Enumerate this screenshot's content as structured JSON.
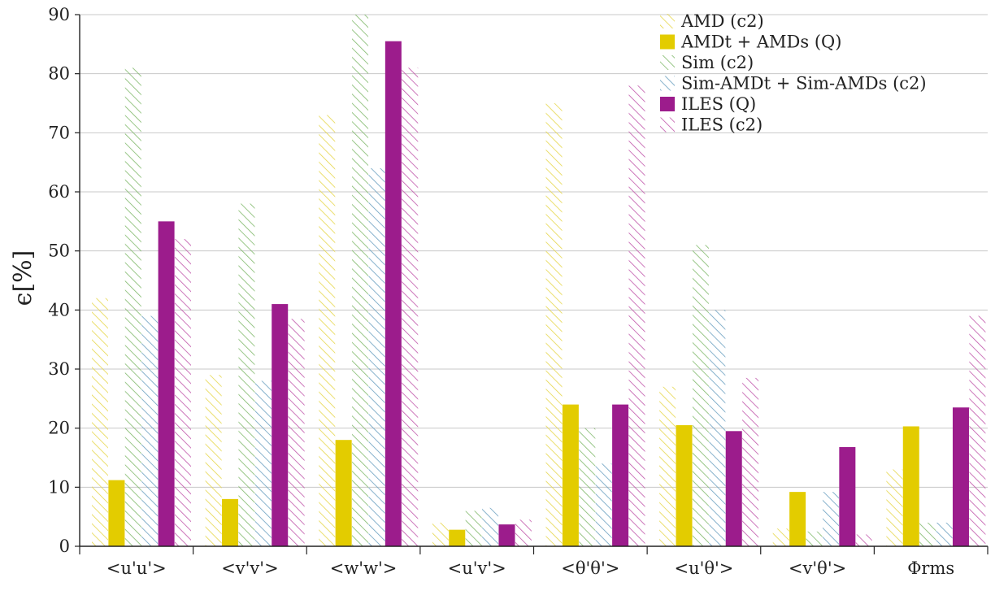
{
  "chart_data": {
    "type": "bar",
    "ylabel": "ϵ[%]",
    "ylim": [
      0,
      90
    ],
    "yticks": [
      0,
      10,
      20,
      30,
      40,
      50,
      60,
      70,
      80,
      90
    ],
    "grid": true,
    "legend_position": "top-right",
    "categories": [
      "<u'u'>",
      "<v'v'>",
      "<w'w'>",
      "<u'v'>",
      "<θ'θ'>",
      "<u'θ'>",
      "<v'θ'>",
      "Φrms"
    ],
    "series": [
      {
        "name": "AMD (c2)",
        "style": "hatched",
        "color": "#e6d64a",
        "values": [
          42,
          29,
          73,
          4,
          75,
          27,
          3,
          13
        ]
      },
      {
        "name": "AMDt + AMDs (Q)",
        "style": "solid",
        "color": "#e3cc00",
        "values": [
          11.2,
          8,
          18,
          2.8,
          24,
          20.5,
          9.2,
          20.3
        ]
      },
      {
        "name": "Sim (c2)",
        "style": "hatched",
        "color": "#7fb86a",
        "values": [
          81,
          58,
          90,
          6,
          20,
          51,
          2.5,
          4
        ]
      },
      {
        "name": "Sim-AMDt + Sim-AMDs (c2)",
        "style": "hatched",
        "color": "#6a9fc0",
        "values": [
          39,
          28,
          64,
          6.5,
          14,
          40,
          9.2,
          4
        ]
      },
      {
        "name": "ILES (Q)",
        "style": "solid",
        "color": "#9c1c8c",
        "values": [
          55,
          41,
          85.5,
          3.7,
          24,
          19.5,
          16.8,
          23.5
        ]
      },
      {
        "name": "ILES (c2)",
        "style": "hatched",
        "color": "#c055aa",
        "values": [
          52,
          38.5,
          81,
          4.5,
          78,
          28.5,
          2,
          39
        ]
      }
    ]
  }
}
